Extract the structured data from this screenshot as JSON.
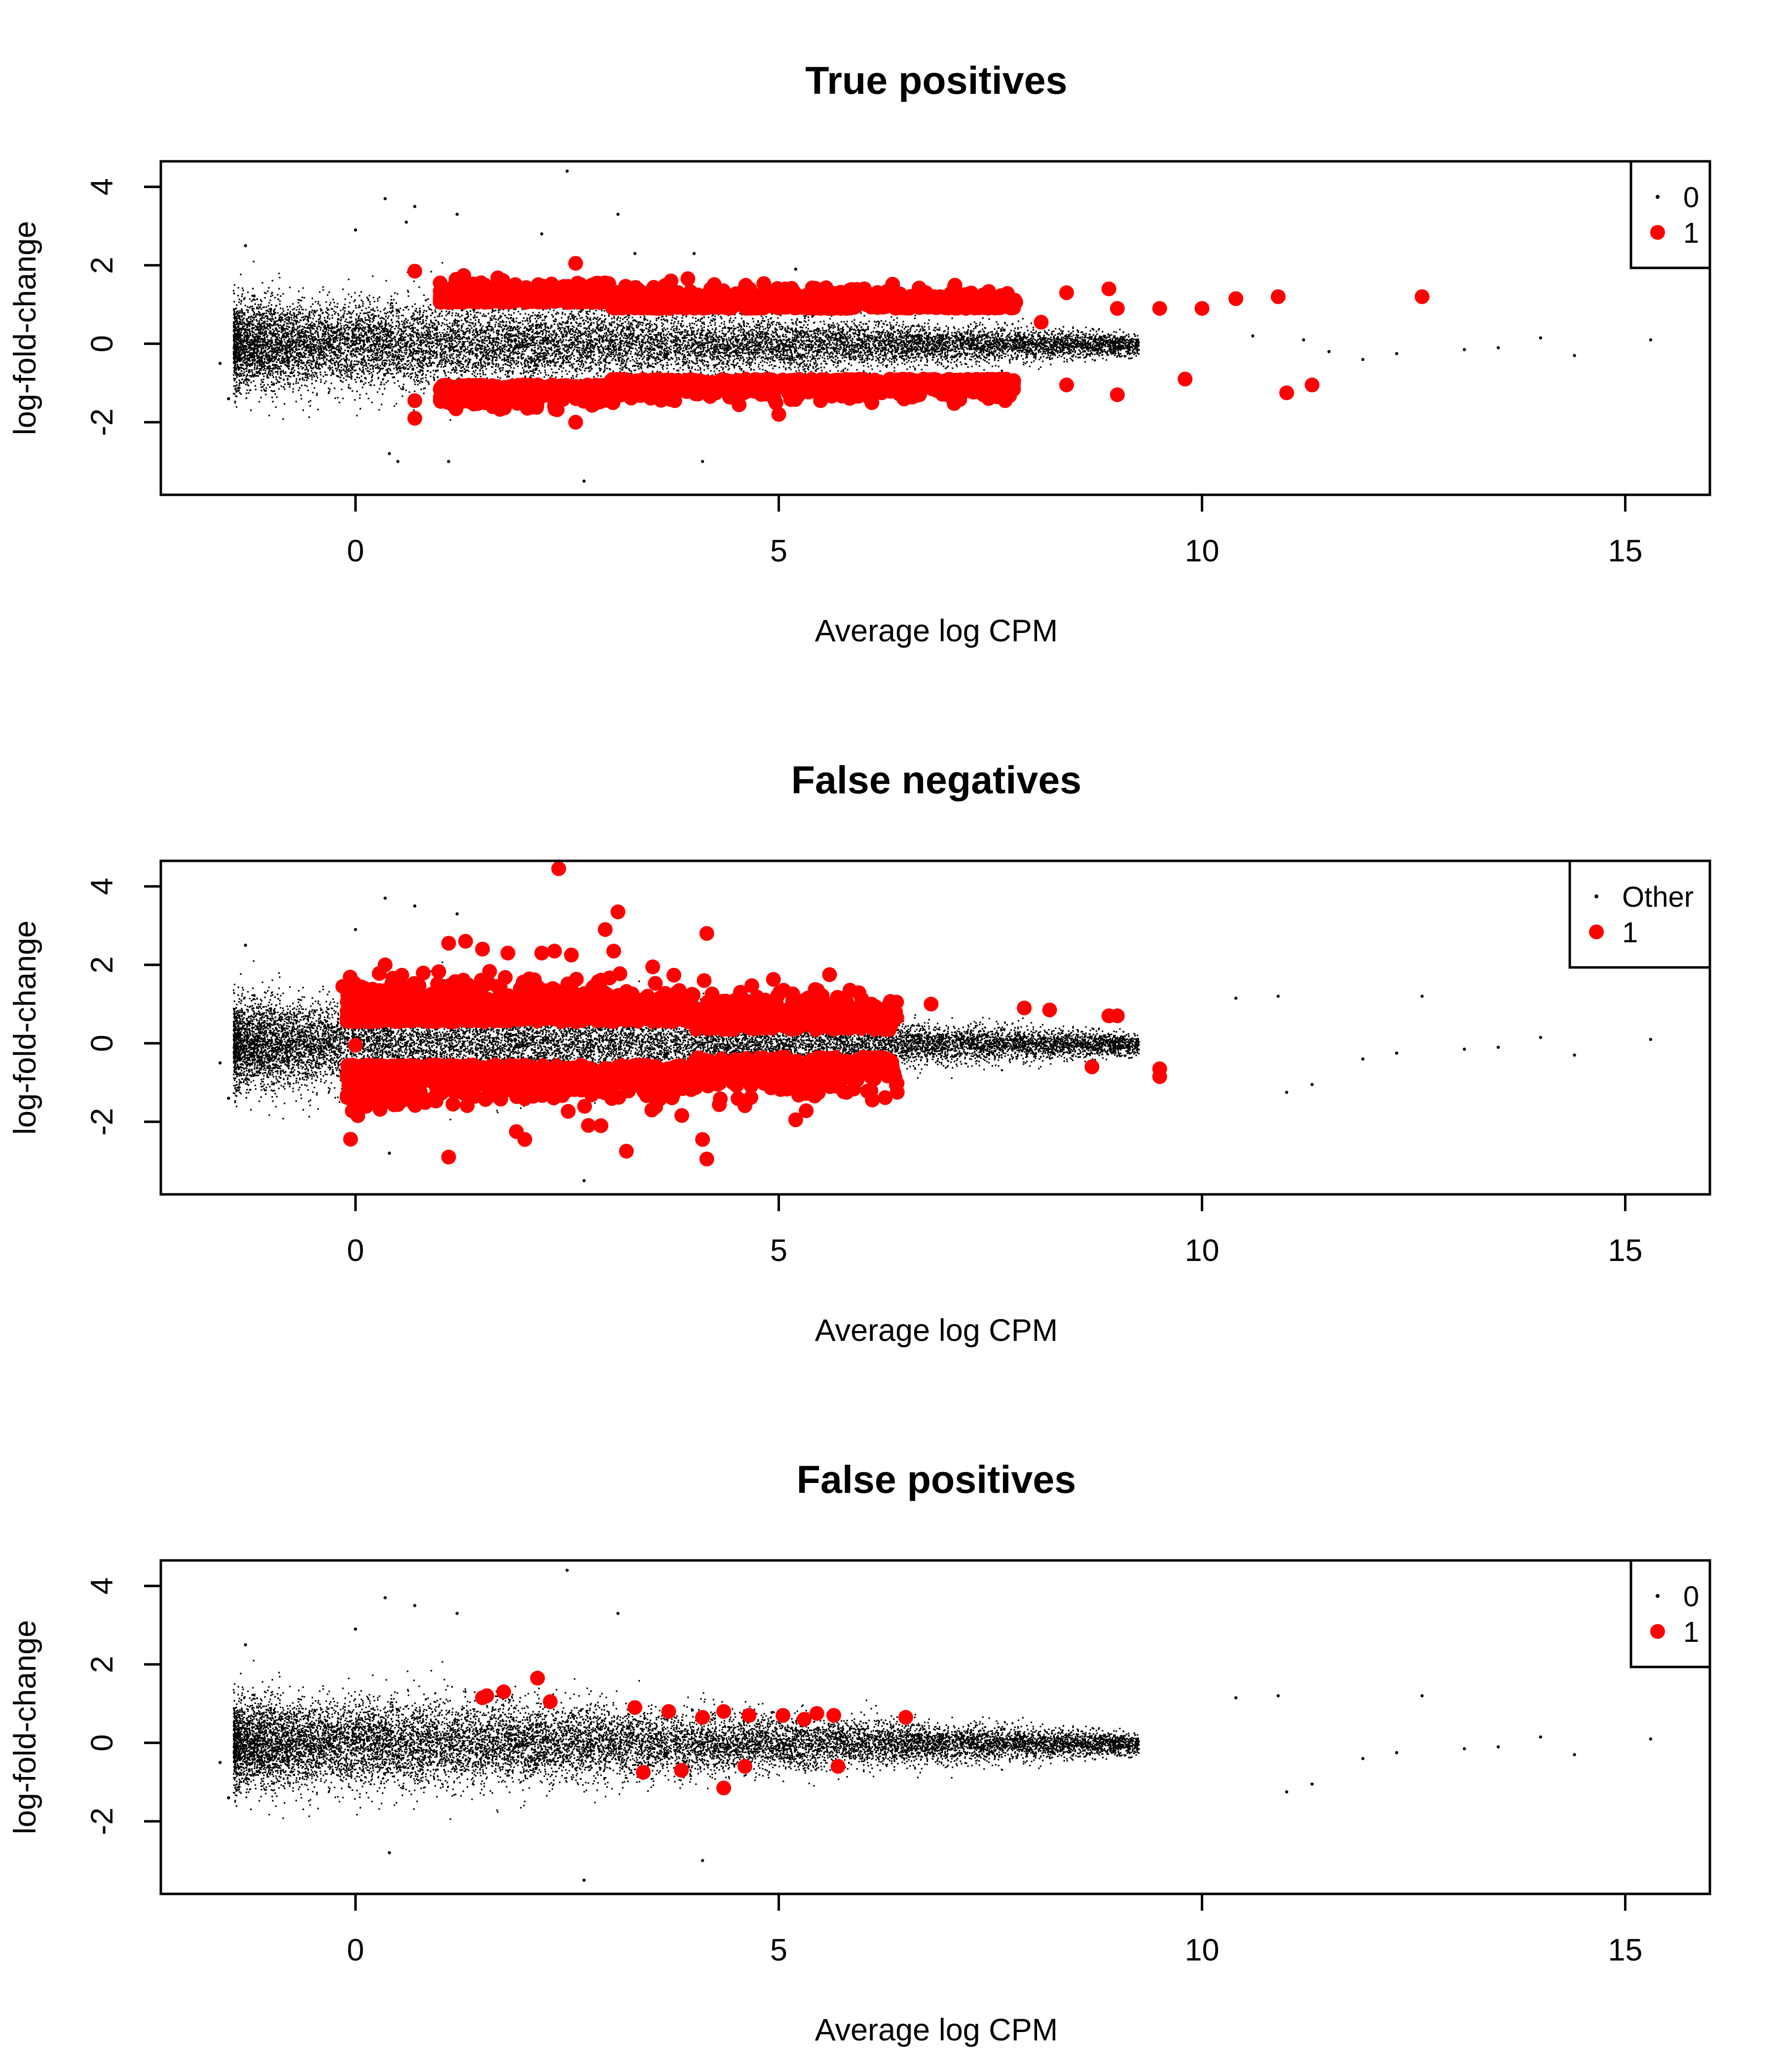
{
  "chart_data": [
    {
      "type": "scatter",
      "title": "True positives",
      "xlabel": "Average log CPM",
      "ylabel": "log-fold-change",
      "xlim": [
        -2.3,
        16.0
      ],
      "ylim": [
        -3.85,
        4.65
      ],
      "xticks": [
        0,
        5,
        10,
        15
      ],
      "yticks": [
        -2,
        0,
        2,
        4
      ],
      "legend": {
        "position": "top-right",
        "entries": [
          {
            "label": "0",
            "color": "#000000",
            "marker": "small-dot"
          },
          {
            "label": "1",
            "color": "#ff0000",
            "marker": "large-dot"
          }
        ]
      },
      "series": [
        {
          "name": "0",
          "color": "#000000",
          "points": [
            [
              2.5,
              4.4
            ],
            [
              0.35,
              3.7
            ],
            [
              0.7,
              3.5
            ],
            [
              1.2,
              3.3
            ],
            [
              3.1,
              3.3
            ],
            [
              0.6,
              3.1
            ],
            [
              -1.3,
              2.5
            ],
            [
              0.0,
              2.9
            ],
            [
              2.2,
              2.8
            ],
            [
              3.3,
              2.3
            ],
            [
              4.0,
              2.3
            ],
            [
              5.2,
              1.9
            ],
            [
              14.0,
              0.15
            ],
            [
              15.3,
              0.1
            ],
            [
              13.5,
              -0.1
            ],
            [
              13.1,
              -0.15
            ],
            [
              12.3,
              -0.25
            ],
            [
              11.9,
              -0.4
            ],
            [
              14.4,
              -0.3
            ],
            [
              -1.6,
              -0.5
            ],
            [
              -1.5,
              -1.4
            ],
            [
              0.4,
              -2.8
            ],
            [
              0.5,
              -3.0
            ],
            [
              1.1,
              -3.0
            ],
            [
              2.7,
              -3.5
            ],
            [
              4.1,
              -3.0
            ],
            [
              10.6,
              0.2
            ],
            [
              11.2,
              0.1
            ],
            [
              11.5,
              -0.2
            ]
          ]
        },
        {
          "name": "1",
          "color": "#ff0000",
          "points": [
            [
              0.7,
              1.85
            ],
            [
              1.0,
              1.55
            ],
            [
              2.6,
              2.05
            ],
            [
              8.4,
              1.3
            ],
            [
              8.9,
              1.4
            ],
            [
              9.0,
              0.9
            ],
            [
              9.5,
              0.9
            ],
            [
              10.0,
              0.9
            ],
            [
              10.4,
              1.15
            ],
            [
              10.9,
              1.2
            ],
            [
              12.6,
              1.2
            ],
            [
              8.1,
              0.55
            ],
            [
              0.7,
              -1.45
            ],
            [
              0.7,
              -1.9
            ],
            [
              1.1,
              -1.3
            ],
            [
              2.6,
              -2.0
            ],
            [
              8.4,
              -1.05
            ],
            [
              9.0,
              -1.3
            ],
            [
              9.8,
              -0.9
            ],
            [
              11.0,
              -1.25
            ],
            [
              11.3,
              -1.05
            ],
            [
              6.1,
              -1.5
            ],
            [
              5.0,
              -1.8
            ]
          ]
        }
      ]
    },
    {
      "type": "scatter",
      "title": "False negatives",
      "xlabel": "Average log CPM",
      "ylabel": "log-fold-change",
      "xlim": [
        -2.3,
        16.0
      ],
      "ylim": [
        -3.85,
        4.65
      ],
      "xticks": [
        0,
        5,
        10,
        15
      ],
      "yticks": [
        -2,
        0,
        2,
        4
      ],
      "legend": {
        "position": "top-right",
        "entries": [
          {
            "label": "Other",
            "color": "#000000",
            "marker": "small-dot"
          },
          {
            "label": "1",
            "color": "#ff0000",
            "marker": "large-dot"
          }
        ]
      },
      "series": [
        {
          "name": "Other",
          "color": "#000000",
          "points": [
            [
              0.35,
              3.7
            ],
            [
              0.7,
              3.5
            ],
            [
              1.2,
              3.3
            ],
            [
              3.1,
              3.3
            ],
            [
              -1.3,
              2.5
            ],
            [
              0.0,
              2.9
            ],
            [
              12.6,
              1.2
            ],
            [
              14.0,
              0.15
            ],
            [
              15.3,
              0.1
            ],
            [
              13.5,
              -0.1
            ],
            [
              13.1,
              -0.15
            ],
            [
              12.3,
              -0.25
            ],
            [
              14.4,
              -0.3
            ],
            [
              -1.6,
              -0.5
            ],
            [
              -1.5,
              -1.4
            ],
            [
              0.4,
              -2.8
            ],
            [
              11.0,
              -1.25
            ],
            [
              11.3,
              -1.05
            ],
            [
              2.7,
              -3.5
            ],
            [
              10.9,
              1.2
            ],
            [
              10.4,
              1.15
            ],
            [
              11.9,
              -0.4
            ]
          ]
        },
        {
          "name": "1",
          "color": "#ff0000",
          "points": [
            [
              2.4,
              4.45
            ],
            [
              3.1,
              3.35
            ],
            [
              2.95,
              2.9
            ],
            [
              4.15,
              2.8
            ],
            [
              1.3,
              2.6
            ],
            [
              1.5,
              2.4
            ],
            [
              1.1,
              2.55
            ],
            [
              1.8,
              2.3
            ],
            [
              2.2,
              2.3
            ],
            [
              2.35,
              2.35
            ],
            [
              2.55,
              2.25
            ],
            [
              3.05,
              2.35
            ],
            [
              0.35,
              2.0
            ],
            [
              5.6,
              1.75
            ],
            [
              -0.15,
              1.45
            ],
            [
              6.8,
              1.0
            ],
            [
              7.9,
              0.9
            ],
            [
              8.9,
              0.7
            ],
            [
              9.0,
              0.7
            ],
            [
              8.2,
              0.85
            ],
            [
              1.1,
              -2.9
            ],
            [
              4.15,
              -2.95
            ],
            [
              3.2,
              -2.75
            ],
            [
              4.1,
              -2.45
            ],
            [
              2.0,
              -2.45
            ],
            [
              1.9,
              -2.25
            ],
            [
              5.2,
              -1.95
            ],
            [
              2.9,
              -2.1
            ],
            [
              3.5,
              -1.7
            ],
            [
              8.7,
              -0.6
            ],
            [
              9.5,
              -0.65
            ],
            [
              9.5,
              -0.85
            ],
            [
              0.0,
              -0.6
            ],
            [
              0.0,
              -0.05
            ]
          ]
        }
      ]
    },
    {
      "type": "scatter",
      "title": "False positives",
      "xlabel": "Average log CPM",
      "ylabel": "log-fold-change",
      "xlim": [
        -2.3,
        16.0
      ],
      "ylim": [
        -3.85,
        4.65
      ],
      "xticks": [
        0,
        5,
        10,
        15
      ],
      "yticks": [
        -2,
        0,
        2,
        4
      ],
      "legend": {
        "position": "top-right",
        "entries": [
          {
            "label": "0",
            "color": "#000000",
            "marker": "small-dot"
          },
          {
            "label": "1",
            "color": "#ff0000",
            "marker": "large-dot"
          }
        ]
      },
      "series": [
        {
          "name": "0",
          "color": "#000000",
          "points": [
            [
              2.5,
              4.4
            ],
            [
              0.35,
              3.7
            ],
            [
              0.7,
              3.5
            ],
            [
              1.2,
              3.3
            ],
            [
              3.1,
              3.3
            ],
            [
              -1.3,
              2.5
            ],
            [
              0.0,
              2.9
            ],
            [
              12.6,
              1.2
            ],
            [
              14.0,
              0.15
            ],
            [
              15.3,
              0.1
            ],
            [
              13.5,
              -0.1
            ],
            [
              13.1,
              -0.15
            ],
            [
              12.3,
              -0.25
            ],
            [
              14.4,
              -0.3
            ],
            [
              -1.6,
              -0.5
            ],
            [
              -1.5,
              -1.4
            ],
            [
              0.4,
              -2.8
            ],
            [
              11.0,
              -1.25
            ],
            [
              11.3,
              -1.05
            ],
            [
              2.7,
              -3.5
            ],
            [
              4.1,
              -3.0
            ],
            [
              10.9,
              1.2
            ],
            [
              10.4,
              1.15
            ],
            [
              11.9,
              -0.4
            ]
          ]
        },
        {
          "name": "1",
          "color": "#ff0000",
          "points": [
            [
              2.15,
              1.65
            ],
            [
              1.5,
              1.15
            ],
            [
              1.75,
              1.3
            ],
            [
              1.55,
              1.2
            ],
            [
              2.3,
              1.05
            ],
            [
              3.3,
              0.9
            ],
            [
              3.7,
              0.8
            ],
            [
              4.1,
              0.65
            ],
            [
              4.35,
              0.8
            ],
            [
              4.65,
              0.7
            ],
            [
              5.05,
              0.7
            ],
            [
              5.3,
              0.6
            ],
            [
              5.45,
              0.75
            ],
            [
              5.65,
              0.7
            ],
            [
              6.5,
              0.65
            ],
            [
              3.4,
              -0.75
            ],
            [
              3.85,
              -0.7
            ],
            [
              4.35,
              -1.15
            ],
            [
              4.6,
              -0.6
            ],
            [
              5.7,
              -0.6
            ]
          ]
        }
      ]
    }
  ]
}
